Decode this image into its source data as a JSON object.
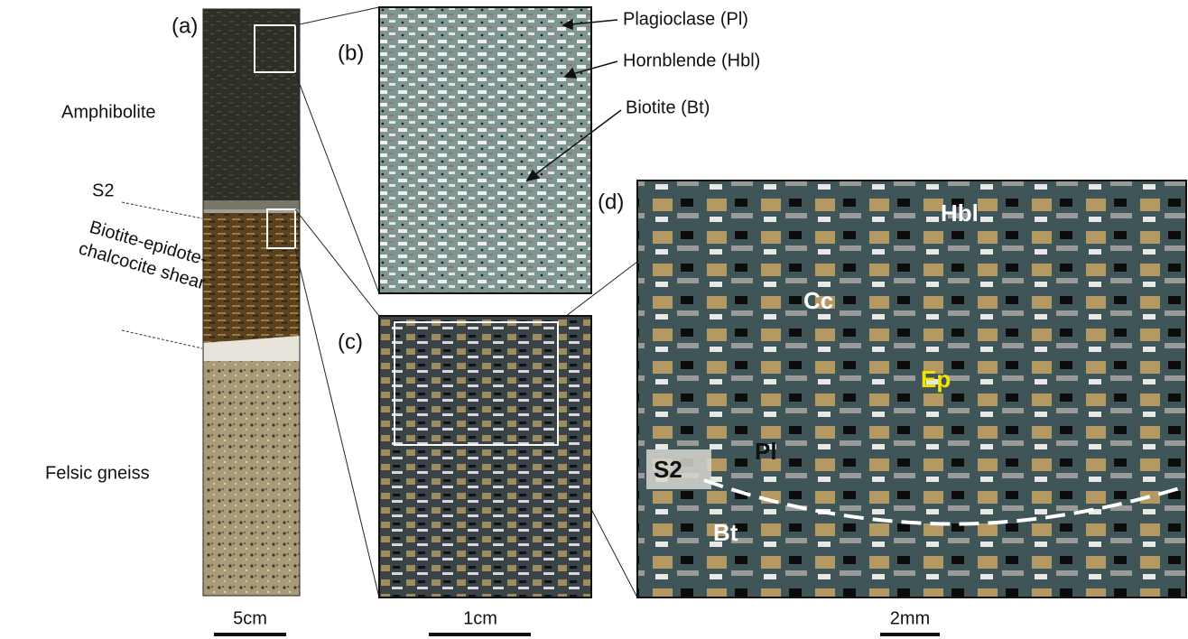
{
  "panels": {
    "a": "(a)",
    "b": "(b)",
    "c": "(c)",
    "d": "(d)"
  },
  "core_labels": {
    "amphibolite": "Amphibolite",
    "s2": "S2",
    "shear_line1": "Biotite-epidote-",
    "shear_line2": "chalcocite shear",
    "felsic": "Felsic gneiss"
  },
  "mineral_callouts": {
    "plagioclase": "Plagioclase (Pl)",
    "hornblende": "Hornblende (Hbl)",
    "biotite": "Biotite (Bt)"
  },
  "panel_d_labels": {
    "hbl": "Hbl",
    "cc": "Cc",
    "ep": "Ep",
    "pl": "Pl",
    "s2": "S2",
    "bt": "Bt"
  },
  "scale_bars": {
    "a": "5cm",
    "c": "1cm",
    "d": "2mm"
  }
}
